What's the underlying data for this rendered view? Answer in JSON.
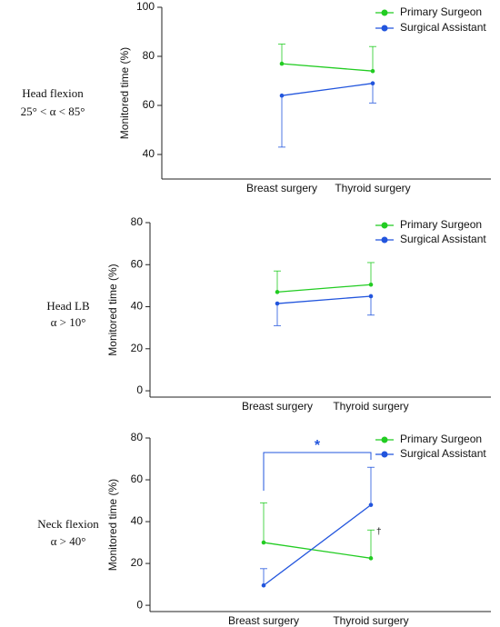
{
  "chart_data": [
    {
      "type": "line",
      "row_label": [
        "Head flexion",
        "25° < α < 85°"
      ],
      "ylabel": "Monitored time (%)",
      "categories": [
        "Breast surgery",
        "Thyroid surgery"
      ],
      "series": [
        {
          "name": "Primary Surgeon",
          "color": "#22cc22",
          "values": [
            77,
            74
          ],
          "errors": [
            8,
            10
          ],
          "error_side": "up"
        },
        {
          "name": "Surgical Assistant",
          "color": "#2255dd",
          "values": [
            64,
            69
          ],
          "errors": [
            21,
            8
          ],
          "error_side": "down"
        }
      ],
      "ylim": [
        30,
        100
      ],
      "yticks": [
        40,
        60,
        80,
        100
      ]
    },
    {
      "type": "line",
      "row_label": [
        "Head LB",
        "α > 10°"
      ],
      "ylabel": "Monitored time (%)",
      "categories": [
        "Breast surgery",
        "Thyroid surgery"
      ],
      "series": [
        {
          "name": "Primary Surgeon",
          "color": "#22cc22",
          "values": [
            47,
            50.5
          ],
          "errors": [
            10,
            10.5
          ],
          "error_side": "up"
        },
        {
          "name": "Surgical Assistant",
          "color": "#2255dd",
          "values": [
            41.5,
            45
          ],
          "errors": [
            10.5,
            9
          ],
          "error_side": "down"
        }
      ],
      "ylim": [
        -3,
        80
      ],
      "yticks": [
        0,
        20,
        40,
        60,
        80
      ]
    },
    {
      "type": "line",
      "row_label": [
        "Neck flexion",
        "α > 40°"
      ],
      "ylabel": "Monitored time (%)",
      "categories": [
        "Breast surgery",
        "Thyroid surgery"
      ],
      "series": [
        {
          "name": "Primary Surgeon",
          "color": "#22cc22",
          "values": [
            30,
            22.5
          ],
          "errors": [
            19,
            13.5
          ],
          "error_side": "up"
        },
        {
          "name": "Surgical Assistant",
          "color": "#2255dd",
          "values": [
            9.5,
            48
          ],
          "errors": [
            8,
            18
          ],
          "error_side": "up"
        }
      ],
      "ylim": [
        -3,
        80
      ],
      "yticks": [
        0,
        20,
        40,
        60,
        80
      ],
      "significance": "*",
      "dagger": "†"
    }
  ]
}
